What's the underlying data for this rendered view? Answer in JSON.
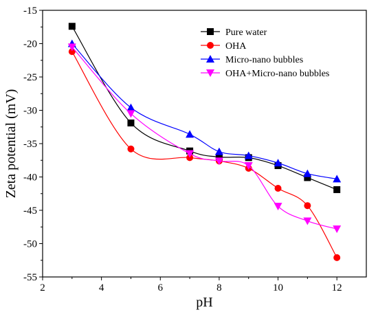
{
  "chart_data": {
    "type": "line",
    "xlabel": "pH",
    "ylabel": "Zeta potential (mV)",
    "xlim": [
      2,
      13
    ],
    "ylim": [
      -55,
      -15
    ],
    "xticks": [
      2,
      4,
      6,
      8,
      10,
      12
    ],
    "yticks": [
      -15,
      -20,
      -25,
      -30,
      -35,
      -40,
      -45,
      -50,
      -55
    ],
    "legend_position": "top-right",
    "grid": false,
    "x": [
      3,
      5,
      7,
      8,
      9,
      10,
      11,
      12
    ],
    "series": [
      {
        "name": "Pure water",
        "marker": "square",
        "color": "#000000",
        "values": [
          -17.4,
          -31.9,
          -36.1,
          -37.0,
          -37.1,
          -38.3,
          -40.1,
          -41.9
        ]
      },
      {
        "name": "OHA",
        "marker": "circle",
        "color": "#ff0000",
        "values": [
          -21.2,
          -35.8,
          -37.1,
          -37.6,
          -38.7,
          -41.7,
          -44.3,
          -52.1
        ]
      },
      {
        "name": "Micro-nano bubbles",
        "marker": "triangle-up",
        "color": "#0000ff",
        "values": [
          -20.0,
          -29.6,
          -33.6,
          -36.2,
          -36.8,
          -37.9,
          -39.5,
          -40.3
        ]
      },
      {
        "name": "OHA+Micro-nano bubbles",
        "marker": "triangle-down",
        "color": "#ff00ff",
        "values": [
          -20.5,
          -30.5,
          -36.5,
          -37.6,
          -38.3,
          -44.4,
          -46.6,
          -47.8
        ]
      }
    ]
  }
}
